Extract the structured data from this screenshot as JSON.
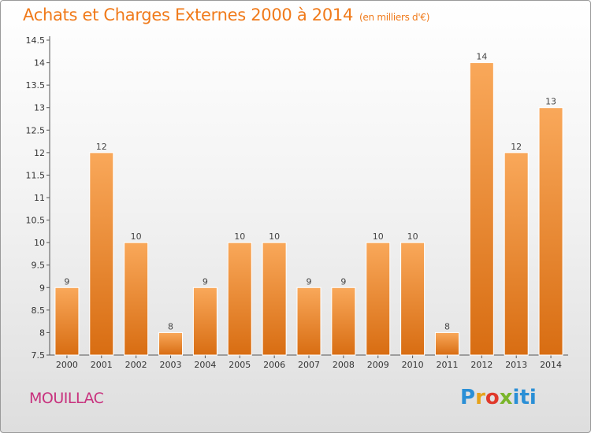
{
  "header": {
    "title": "Achats et Charges Externes 2000 à 2014",
    "unit": "(en milliers d'€)"
  },
  "footer": {
    "town": "MOUILLAC",
    "logo_text": "Proxiti"
  },
  "colors": {
    "title": "#f07a1a",
    "town": "#c8327e",
    "bar_light": "#f9a85a",
    "bar_dark": "#d86d12"
  },
  "chart_data": {
    "type": "bar",
    "title": "Achats et Charges Externes 2000 à 2014",
    "xlabel": "",
    "ylabel": "",
    "categories": [
      "2000",
      "2001",
      "2002",
      "2003",
      "2004",
      "2005",
      "2006",
      "2007",
      "2008",
      "2009",
      "2010",
      "2011",
      "2012",
      "2013",
      "2014"
    ],
    "values": [
      9,
      12,
      10,
      8,
      9,
      10,
      10,
      9,
      9,
      10,
      10,
      8,
      14,
      12,
      13
    ],
    "data_labels": [
      "9",
      "12",
      "10",
      "8",
      "9",
      "10",
      "10",
      "9",
      "9",
      "10",
      "10",
      "8",
      "14",
      "12",
      "13"
    ],
    "ylim": [
      7.5,
      14.5
    ],
    "yticks": [
      7.5,
      8,
      8.5,
      9,
      9.5,
      10,
      10.5,
      11,
      11.5,
      12,
      12.5,
      13,
      13.5,
      14,
      14.5
    ],
    "ytick_labels": [
      "7.5",
      "8",
      "8.5",
      "9",
      "9.5",
      "10",
      "10.5",
      "11",
      "11.5",
      "12",
      "12.5",
      "13",
      "13.5",
      "14",
      "14.5"
    ],
    "grid": false,
    "legend": "none"
  }
}
